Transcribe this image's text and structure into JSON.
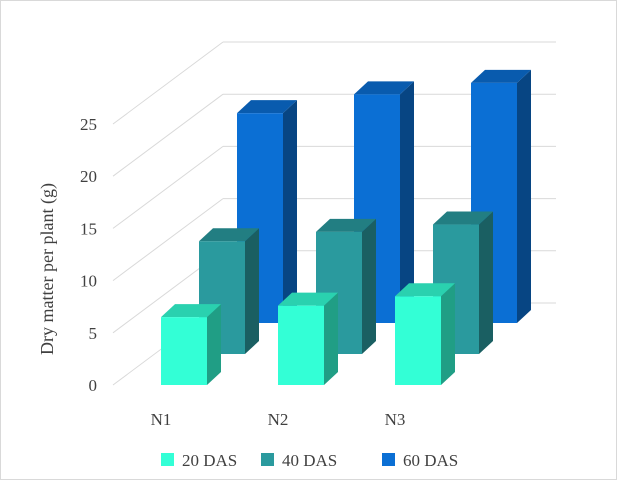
{
  "chart_data": {
    "type": "bar",
    "style": "3d-column",
    "categories": [
      "N1",
      "N2",
      "N3"
    ],
    "series": [
      {
        "name": "20 DAS",
        "values": [
          6.5,
          7.6,
          8.5
        ],
        "color": "#33ffd6"
      },
      {
        "name": "40 DAS",
        "values": [
          10.8,
          11.7,
          12.4
        ],
        "color": "#2a9a9e"
      },
      {
        "name": "60 DAS",
        "values": [
          20.1,
          21.9,
          23.0
        ],
        "color": "#0b6fd4"
      }
    ],
    "ylabel": "Dry matter per plant (g)",
    "yticks": [
      0,
      5,
      10,
      15,
      20,
      25
    ],
    "ylim": [
      0,
      25
    ],
    "grid": true,
    "legend": "bottom"
  }
}
